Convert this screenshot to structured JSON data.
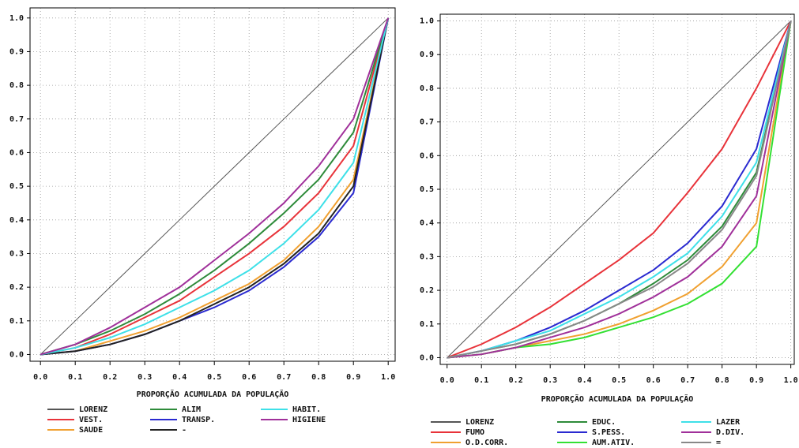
{
  "chart_data": [
    {
      "type": "line",
      "xlabel": "PROPORÇÃO ACUMULADA DA POPULAÇÃO",
      "grid": true,
      "xlim": [
        -0.03,
        1.02
      ],
      "ylim": [
        -0.02,
        1.03
      ],
      "xticks": [
        {
          "value": 0,
          "label": "0.0"
        },
        0.1,
        0.2,
        0.3,
        0.4,
        0.5,
        0.6,
        0.7,
        0.8,
        0.9,
        {
          "value": 1,
          "label": "1.0"
        }
      ],
      "yticks": [
        {
          "value": 0,
          "label": "0.0"
        },
        0.1,
        0.2,
        0.3,
        0.4,
        0.5,
        0.6,
        0.7,
        0.8,
        0.9,
        {
          "value": 1,
          "label": "1.0"
        }
      ],
      "x": [
        0,
        0.1,
        0.2,
        0.3,
        0.4,
        0.5,
        0.6,
        0.7,
        0.8,
        0.9,
        1
      ],
      "series": [
        {
          "name": "LORENZ",
          "color": "#555555",
          "values": [
            0,
            0.1,
            0.2,
            0.3,
            0.4,
            0.5,
            0.6,
            0.7,
            0.8,
            0.9,
            1
          ]
        },
        {
          "name": "VEST.",
          "color": "#e8333a",
          "values": [
            0,
            0.02,
            0.06,
            0.11,
            0.16,
            0.23,
            0.3,
            0.38,
            0.48,
            0.62,
            1
          ]
        },
        {
          "name": "SAUDE",
          "color": "#f0a030",
          "values": [
            0,
            0.01,
            0.04,
            0.07,
            0.11,
            0.16,
            0.21,
            0.28,
            0.38,
            0.52,
            1
          ]
        },
        {
          "name": "ALIM",
          "color": "#2e8b3a",
          "values": [
            0,
            0.03,
            0.07,
            0.12,
            0.18,
            0.25,
            0.33,
            0.42,
            0.52,
            0.66,
            1
          ]
        },
        {
          "name": "TRANSP.",
          "color": "#2a2ad0",
          "values": [
            0,
            0.01,
            0.03,
            0.06,
            0.1,
            0.14,
            0.19,
            0.26,
            0.35,
            0.48,
            1
          ]
        },
        {
          "name": "-",
          "color": "#222222",
          "values": [
            0,
            0.01,
            0.03,
            0.06,
            0.1,
            0.15,
            0.2,
            0.27,
            0.36,
            0.5,
            1
          ]
        },
        {
          "name": "HABIT.",
          "color": "#3ee0e8",
          "values": [
            0,
            0.02,
            0.05,
            0.09,
            0.14,
            0.19,
            0.25,
            0.33,
            0.43,
            0.57,
            1
          ]
        },
        {
          "name": "HIGIENE",
          "color": "#a0309a",
          "values": [
            0,
            0.03,
            0.08,
            0.14,
            0.2,
            0.28,
            0.36,
            0.45,
            0.56,
            0.7,
            1
          ]
        }
      ]
    },
    {
      "type": "line",
      "xlabel": "PROPORÇÃO ACUMULADA DA POPULAÇÃO",
      "grid": true,
      "xlim": [
        -0.02,
        1.01
      ],
      "ylim": [
        -0.02,
        1.02
      ],
      "xticks": [
        {
          "value": 0,
          "label": "0.0"
        },
        0.1,
        0.2,
        0.3,
        0.4,
        0.5,
        0.6,
        0.7,
        0.8,
        0.9,
        {
          "value": 1,
          "label": "1.0"
        }
      ],
      "yticks": [
        {
          "value": 0,
          "label": "0.0"
        },
        0.1,
        0.2,
        0.3,
        0.4,
        0.5,
        0.6,
        0.7,
        0.8,
        0.9,
        {
          "value": 1,
          "label": "1.0"
        }
      ],
      "x": [
        0,
        0.1,
        0.2,
        0.3,
        0.4,
        0.5,
        0.6,
        0.7,
        0.8,
        0.9,
        1
      ],
      "series": [
        {
          "name": "LORENZ",
          "color": "#555555",
          "values": [
            0,
            0.1,
            0.2,
            0.3,
            0.4,
            0.5,
            0.6,
            0.7,
            0.8,
            0.9,
            1
          ]
        },
        {
          "name": "FUMO",
          "color": "#e8333a",
          "values": [
            0,
            0.04,
            0.09,
            0.15,
            0.22,
            0.29,
            0.37,
            0.49,
            0.62,
            0.8,
            1
          ]
        },
        {
          "name": "O.D.CORR.",
          "color": "#f0a030",
          "values": [
            0,
            0.01,
            0.03,
            0.05,
            0.07,
            0.1,
            0.14,
            0.19,
            0.27,
            0.4,
            1
          ]
        },
        {
          "name": "EDUC.",
          "color": "#2e8b3a",
          "values": [
            0,
            0.02,
            0.04,
            0.07,
            0.11,
            0.16,
            0.22,
            0.29,
            0.39,
            0.55,
            1
          ]
        },
        {
          "name": "S.PESS.",
          "color": "#2a2ad0",
          "values": [
            0,
            0.02,
            0.05,
            0.09,
            0.14,
            0.2,
            0.26,
            0.34,
            0.45,
            0.62,
            1
          ]
        },
        {
          "name": "AUM.ATIV.",
          "color": "#33e033",
          "values": [
            0,
            0.01,
            0.03,
            0.04,
            0.06,
            0.09,
            0.12,
            0.16,
            0.22,
            0.33,
            1
          ]
        },
        {
          "name": "LAZER",
          "color": "#3ee0e8",
          "values": [
            0,
            0.02,
            0.05,
            0.08,
            0.13,
            0.18,
            0.24,
            0.31,
            0.42,
            0.58,
            1
          ]
        },
        {
          "name": "D.DIV.",
          "color": "#a0309a",
          "values": [
            0,
            0.01,
            0.03,
            0.06,
            0.09,
            0.13,
            0.18,
            0.24,
            0.33,
            0.48,
            1
          ]
        },
        {
          "name": "=",
          "color": "#888888",
          "values": [
            0,
            0.02,
            0.04,
            0.07,
            0.11,
            0.16,
            0.21,
            0.28,
            0.38,
            0.54,
            1
          ]
        }
      ]
    }
  ]
}
